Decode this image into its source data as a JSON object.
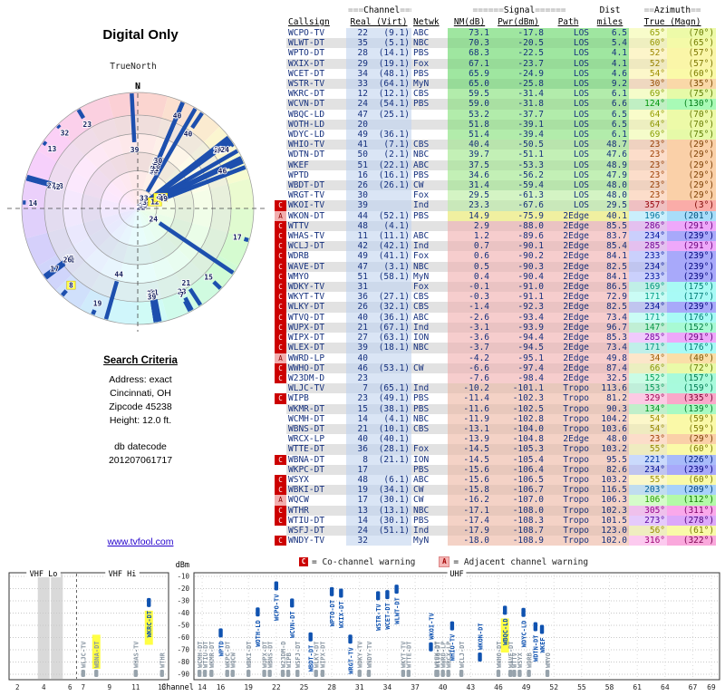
{
  "title": "Digital Only",
  "radar": {
    "true_north_label": "TrueNorth",
    "north_label": "N"
  },
  "search_criteria": {
    "heading": "Search Criteria",
    "lines": [
      "Address: exact",
      "Cincinnati, OH",
      "Zipcode 45238",
      "Height: 12.0 ft."
    ],
    "datecode_label": "db datecode",
    "datecode": "201207061717"
  },
  "link": "www.tvfool.com",
  "table": {
    "group_headers": {
      "channel": {
        "prefix": "===",
        "label": "Channel",
        "suffix": "==="
      },
      "signal": {
        "prefix": "======",
        "label": "Signal",
        "suffix": "======"
      },
      "dist": "Dist",
      "azimuth": {
        "prefix": "==",
        "label": "Azimuth",
        "suffix": "=="
      }
    },
    "col_headers": {
      "callsign": "Callsign",
      "real_virt": "Real (Virt)",
      "netwk": "Netwk",
      "nm": "NM(dB)",
      "pwr": "Pwr(dBm)",
      "path": "Path",
      "miles": "miles",
      "true_magn": "True (Magn)"
    }
  },
  "legend": {
    "c_symbol": "C",
    "c_text": "= Co-channel warning",
    "a_symbol": "A",
    "a_text": "= Adjacent channel warning"
  },
  "chart": {
    "y_unit": "dBm",
    "x_label": "Channel",
    "bands": {
      "vhf_lo": "VHF Lo",
      "vhf_hi": "VHF Hi",
      "uhf": "UHF"
    },
    "y_ticks": [
      -10,
      -20,
      -30,
      -40,
      -50,
      -60,
      -70,
      -80,
      -90
    ],
    "left_ticks": [
      2,
      4,
      6,
      7,
      9,
      11,
      13
    ],
    "right_ticks": [
      14,
      16,
      19,
      22,
      25,
      28,
      31,
      34,
      37,
      40,
      43,
      46,
      49,
      52,
      55,
      58,
      61,
      64,
      67,
      69
    ]
  },
  "colors": {
    "bar_blue": "#0f52b0",
    "weak_gray": "#97a3ac",
    "warn_red": "#cc0000",
    "highlight_yellow": "#ffff44"
  },
  "stations": [
    {
      "c": "WCPO-TV",
      "r": 22,
      "v": "(9.1)",
      "n": "ABC",
      "nm": 73.1,
      "p": -17.8,
      "pa": "LOS",
      "d": 6.5,
      "at": 65,
      "am": 70,
      "w": ""
    },
    {
      "c": "WLWT-DT",
      "r": 35,
      "v": "(5.1)",
      "n": "NBC",
      "nm": 70.3,
      "p": -20.5,
      "pa": "LOS",
      "d": 5.4,
      "at": 60,
      "am": 65,
      "w": ""
    },
    {
      "c": "WPTO-DT",
      "r": 28,
      "v": "(14.1)",
      "n": "PBS",
      "nm": 68.3,
      "p": -22.5,
      "pa": "LOS",
      "d": 4.1,
      "at": 52,
      "am": 57,
      "w": ""
    },
    {
      "c": "WXIX-DT",
      "r": 29,
      "v": "(19.1)",
      "n": "Fox",
      "nm": 67.1,
      "p": -23.7,
      "pa": "LOS",
      "d": 4.1,
      "at": 52,
      "am": 57,
      "w": ""
    },
    {
      "c": "WCET-DT",
      "r": 34,
      "v": "(48.1)",
      "n": "PBS",
      "nm": 65.9,
      "p": -24.9,
      "pa": "LOS",
      "d": 4.6,
      "at": 54,
      "am": 60,
      "w": ""
    },
    {
      "c": "WSTR-TV",
      "r": 33,
      "v": "(64.1)",
      "n": "MyN",
      "nm": 65.0,
      "p": -25.8,
      "pa": "LOS",
      "d": 9.2,
      "at": 30,
      "am": 35,
      "w": ""
    },
    {
      "c": "WKRC-DT",
      "r": 12,
      "v": "(12.1)",
      "n": "CBS",
      "nm": 59.5,
      "p": -31.4,
      "pa": "LOS",
      "d": 6.1,
      "at": 69,
      "am": 75,
      "w": "",
      "hl": true
    },
    {
      "c": "WCVN-DT",
      "r": 24,
      "v": "(54.1)",
      "n": "PBS",
      "nm": 59.0,
      "p": -31.8,
      "pa": "LOS",
      "d": 6.6,
      "at": 124,
      "am": 130,
      "w": ""
    },
    {
      "c": "WBQC-LD",
      "r": 47,
      "v": "(25.1)",
      "n": "",
      "nm": 53.2,
      "p": -37.7,
      "pa": "LOS",
      "d": 6.5,
      "at": 64,
      "am": 70,
      "w": "",
      "hl": true
    },
    {
      "c": "WOTH-LD",
      "r": 20,
      "v": "",
      "n": "",
      "nm": 51.8,
      "p": -39.1,
      "pa": "LOS",
      "d": 6.5,
      "at": 64,
      "am": 70,
      "w": ""
    },
    {
      "c": "WDYC-LD",
      "r": 49,
      "v": "(36.1)",
      "n": "",
      "nm": 51.4,
      "p": -39.4,
      "pa": "LOS",
      "d": 6.1,
      "at": 69,
      "am": 75,
      "w": ""
    },
    {
      "c": "WHIO-TV",
      "r": 41,
      "v": "(7.1)",
      "n": "CBS",
      "nm": 40.4,
      "p": -50.5,
      "pa": "LOS",
      "d": 48.7,
      "at": 23,
      "am": 29,
      "w": ""
    },
    {
      "c": "WDTN-DT",
      "r": 50,
      "v": "(2.1)",
      "n": "NBC",
      "nm": 39.7,
      "p": -51.1,
      "pa": "LOS",
      "d": 47.6,
      "at": 23,
      "am": 29,
      "w": ""
    },
    {
      "c": "WKEF",
      "r": 51,
      "v": "(22.1)",
      "n": "ABC",
      "nm": 37.5,
      "p": -53.3,
      "pa": "LOS",
      "d": 48.9,
      "at": 23,
      "am": 29,
      "w": ""
    },
    {
      "c": "WPTD",
      "r": 16,
      "v": "(16.1)",
      "n": "PBS",
      "nm": 34.6,
      "p": -56.2,
      "pa": "LOS",
      "d": 47.9,
      "at": 23,
      "am": 29,
      "w": ""
    },
    {
      "c": "WBDT-DT",
      "r": 26,
      "v": "(26.1)",
      "n": "CW",
      "nm": 31.4,
      "p": -59.4,
      "pa": "LOS",
      "d": 48.0,
      "at": 23,
      "am": 29,
      "w": ""
    },
    {
      "c": "WRGT-TV",
      "r": 30,
      "v": "",
      "n": "Fox",
      "nm": 29.5,
      "p": -61.3,
      "pa": "LOS",
      "d": 48.0,
      "at": 23,
      "am": 29,
      "w": ""
    },
    {
      "c": "WKOI-TV",
      "r": 39,
      "v": "",
      "n": "Ind",
      "nm": 23.3,
      "p": -67.6,
      "pa": "LOS",
      "d": 29.5,
      "at": 357,
      "am": 3,
      "w": "C"
    },
    {
      "c": "WKON-DT",
      "r": 44,
      "v": "(52.1)",
      "n": "PBS",
      "nm": 14.9,
      "p": -75.9,
      "pa": "2Edge",
      "d": 40.1,
      "at": 196,
      "am": 201,
      "w": "A"
    },
    {
      "c": "WTTV",
      "r": 48,
      "v": "(4.1)",
      "n": "",
      "nm": 2.9,
      "p": -88.0,
      "pa": "2Edge",
      "d": 85.5,
      "at": 286,
      "am": 291,
      "w": "C"
    },
    {
      "c": "WHAS-TV",
      "r": 11,
      "v": "(11.1)",
      "n": "ABC",
      "nm": 1.2,
      "p": -89.6,
      "pa": "2Edge",
      "d": 83.7,
      "at": 234,
      "am": 239,
      "w": "C"
    },
    {
      "c": "WCLJ-DT",
      "r": 42,
      "v": "(42.1)",
      "n": "Ind",
      "nm": 0.7,
      "p": -90.1,
      "pa": "2Edge",
      "d": 85.4,
      "at": 285,
      "am": 291,
      "w": "C"
    },
    {
      "c": "WDRB",
      "r": 49,
      "v": "(41.1)",
      "n": "Fox",
      "nm": 0.6,
      "p": -90.2,
      "pa": "2Edge",
      "d": 84.1,
      "at": 233,
      "am": 239,
      "w": "C"
    },
    {
      "c": "WAVE-DT",
      "r": 47,
      "v": "(3.1)",
      "n": "NBC",
      "nm": 0.5,
      "p": -90.3,
      "pa": "2Edge",
      "d": 82.5,
      "at": 234,
      "am": 239,
      "w": "C"
    },
    {
      "c": "WMYO",
      "r": 51,
      "v": "(58.1)",
      "n": "MyN",
      "nm": 0.4,
      "p": -90.4,
      "pa": "2Edge",
      "d": 84.1,
      "at": 233,
      "am": 239,
      "w": "C"
    },
    {
      "c": "WDKY-TV",
      "r": 31,
      "v": "",
      "n": "Fox",
      "nm": -0.1,
      "p": -91.0,
      "pa": "2Edge",
      "d": 86.5,
      "at": 169,
      "am": 175,
      "w": "C"
    },
    {
      "c": "WKYT-TV",
      "r": 36,
      "v": "(27.1)",
      "n": "CBS",
      "nm": -0.3,
      "p": -91.1,
      "pa": "2Edge",
      "d": 72.9,
      "at": 171,
      "am": 177,
      "w": "C"
    },
    {
      "c": "WLKY-DT",
      "r": 26,
      "v": "(32.1)",
      "n": "CBS",
      "nm": -1.4,
      "p": -92.3,
      "pa": "2Edge",
      "d": 82.5,
      "at": 234,
      "am": 239,
      "w": "C"
    },
    {
      "c": "WTVQ-DT",
      "r": 40,
      "v": "(36.1)",
      "n": "ABC",
      "nm": -2.6,
      "p": -93.4,
      "pa": "2Edge",
      "d": 73.4,
      "at": 171,
      "am": 176,
      "w": "C"
    },
    {
      "c": "WUPX-DT",
      "r": 21,
      "v": "(67.1)",
      "n": "Ind",
      "nm": -3.1,
      "p": -93.9,
      "pa": "2Edge",
      "d": 96.7,
      "at": 147,
      "am": 152,
      "w": "C"
    },
    {
      "c": "WIPX-DT",
      "r": 27,
      "v": "(63.1)",
      "n": "ION",
      "nm": -3.6,
      "p": -94.4,
      "pa": "2Edge",
      "d": 85.3,
      "at": 285,
      "am": 291,
      "w": "C"
    },
    {
      "c": "WLEX-DT",
      "r": 39,
      "v": "(18.1)",
      "n": "NBC",
      "nm": -3.7,
      "p": -94.5,
      "pa": "2Edge",
      "d": 73.4,
      "at": 171,
      "am": 176,
      "w": "C"
    },
    {
      "c": "WWRD-LP",
      "r": 40,
      "v": "",
      "n": "",
      "nm": -4.2,
      "p": -95.1,
      "pa": "2Edge",
      "d": 49.8,
      "at": 34,
      "am": 40,
      "w": "A"
    },
    {
      "c": "WWHO-DT",
      "r": 46,
      "v": "(53.1)",
      "n": "CW",
      "nm": -6.6,
      "p": -97.4,
      "pa": "2Edge",
      "d": 87.4,
      "at": 66,
      "am": 72,
      "w": "C"
    },
    {
      "c": "W23DM-D",
      "r": 23,
      "v": "",
      "n": "",
      "nm": -7.6,
      "p": -98.4,
      "pa": "2Edge",
      "d": 32.5,
      "at": 152,
      "am": 157,
      "w": "C"
    },
    {
      "c": "WLJC-TV",
      "r": 7,
      "v": "(65.1)",
      "n": "Ind",
      "nm": -10.2,
      "p": -101.1,
      "pa": "Tropo",
      "d": 113.6,
      "at": 153,
      "am": 159,
      "w": ""
    },
    {
      "c": "WIPB",
      "r": 23,
      "v": "(49.1)",
      "n": "PBS",
      "nm": -11.4,
      "p": -102.3,
      "pa": "Tropo",
      "d": 81.2,
      "at": 329,
      "am": 335,
      "w": "C"
    },
    {
      "c": "WKMR-DT",
      "r": 15,
      "v": "(38.1)",
      "n": "PBS",
      "nm": -11.6,
      "p": -102.5,
      "pa": "Tropo",
      "d": 90.3,
      "at": 134,
      "am": 139,
      "w": ""
    },
    {
      "c": "WCMH-DT",
      "r": 14,
      "v": "(4.1)",
      "n": "NBC",
      "nm": -11.9,
      "p": -102.8,
      "pa": "Tropo",
      "d": 104.2,
      "at": 54,
      "am": 59,
      "w": ""
    },
    {
      "c": "WBNS-DT",
      "r": 21,
      "v": "(10.1)",
      "n": "CBS",
      "nm": -13.1,
      "p": -104.0,
      "pa": "Tropo",
      "d": 103.6,
      "at": 54,
      "am": 59,
      "w": ""
    },
    {
      "c": "WRCX-LP",
      "r": 40,
      "v": "(40.1)",
      "n": "",
      "nm": -13.9,
      "p": -104.8,
      "pa": "2Edge",
      "d": 48.0,
      "at": 23,
      "am": 29,
      "w": ""
    },
    {
      "c": "WTTE-DT",
      "r": 36,
      "v": "(28.1)",
      "n": "Fox",
      "nm": -14.5,
      "p": -105.3,
      "pa": "Tropo",
      "d": 103.2,
      "at": 55,
      "am": 60,
      "w": ""
    },
    {
      "c": "WBNA-DT",
      "r": 8,
      "v": "(21.1)",
      "n": "ION",
      "nm": -14.5,
      "p": -105.4,
      "pa": "Tropo",
      "d": 95.5,
      "at": 221,
      "am": 226,
      "w": "C",
      "hl": true
    },
    {
      "c": "WKPC-DT",
      "r": 17,
      "v": "",
      "n": "PBS",
      "nm": -15.6,
      "p": -106.4,
      "pa": "Tropo",
      "d": 82.6,
      "at": 234,
      "am": 239,
      "w": ""
    },
    {
      "c": "WSYX",
      "r": 48,
      "v": "(6.1)",
      "n": "ABC",
      "nm": -15.6,
      "p": -106.5,
      "pa": "Tropo",
      "d": 103.2,
      "at": 55,
      "am": 60,
      "w": "C"
    },
    {
      "c": "WBKI-DT",
      "r": 19,
      "v": "(34.1)",
      "n": "CW",
      "nm": -15.8,
      "p": -106.7,
      "pa": "Tropo",
      "d": 116.5,
      "at": 203,
      "am": 209,
      "w": "C"
    },
    {
      "c": "WQCW",
      "r": 17,
      "v": "(30.1)",
      "n": "CW",
      "nm": -16.2,
      "p": -107.0,
      "pa": "Tropo",
      "d": 106.3,
      "at": 106,
      "am": 112,
      "w": "A"
    },
    {
      "c": "WTHR",
      "r": 13,
      "v": "(13.1)",
      "n": "NBC",
      "nm": -17.1,
      "p": -108.0,
      "pa": "Tropo",
      "d": 102.3,
      "at": 305,
      "am": 311,
      "w": "C"
    },
    {
      "c": "WTIU-DT",
      "r": 14,
      "v": "(30.1)",
      "n": "PBS",
      "nm": -17.4,
      "p": -108.3,
      "pa": "Tropo",
      "d": 101.5,
      "at": 273,
      "am": 278,
      "w": "C"
    },
    {
      "c": "WSFJ-DT",
      "r": 24,
      "v": "(51.1)",
      "n": "Ind",
      "nm": -17.9,
      "p": -108.7,
      "pa": "Tropo",
      "d": 123.0,
      "at": 56,
      "am": 61,
      "w": ""
    },
    {
      "c": "WNDY-TV",
      "r": 32,
      "v": "",
      "n": "MyN",
      "nm": -18.0,
      "p": -108.9,
      "pa": "Tropo",
      "d": 102.0,
      "at": 316,
      "am": 322,
      "w": "C"
    }
  ]
}
